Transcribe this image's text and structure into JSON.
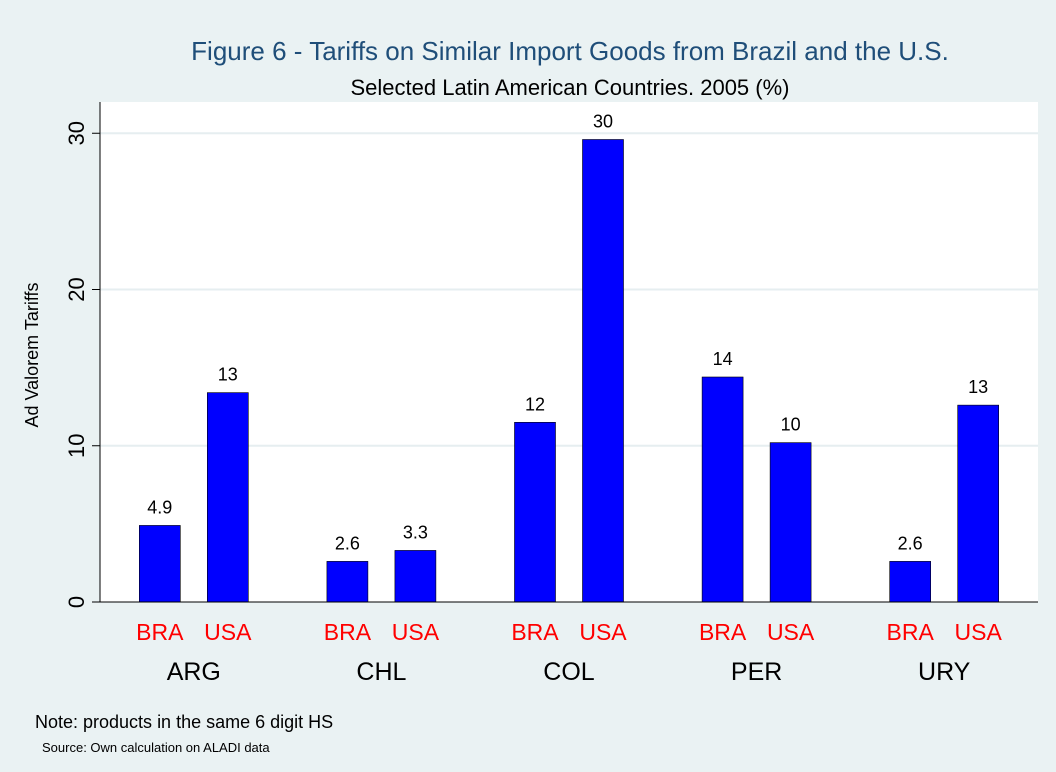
{
  "chart_data": {
    "type": "bar",
    "title": "Figure 6 - Tariffs on Similar Import Goods from Brazil and the U.S.",
    "subtitle": "Selected Latin American Countries. 2005 (%)",
    "ylabel": "Ad Valorem Tariffs",
    "ylim": [
      0,
      32
    ],
    "yticks": [
      0,
      10,
      20,
      30
    ],
    "grid": true,
    "categories": [
      "ARG",
      "CHL",
      "COL",
      "PER",
      "URY"
    ],
    "sub_categories": [
      "BRA",
      "USA"
    ],
    "series": [
      {
        "name": "BRA",
        "values": [
          4.9,
          2.6,
          11.5,
          14.4,
          2.6
        ],
        "labels": [
          "4.9",
          "2.6",
          "12",
          "14",
          "2.6"
        ]
      },
      {
        "name": "USA",
        "values": [
          13.4,
          3.3,
          29.6,
          10.2,
          12.6
        ],
        "labels": [
          "13",
          "3.3",
          "30",
          "10",
          "13"
        ]
      }
    ],
    "colors": {
      "bar": "#0000ff",
      "sub_label": "#ff0000",
      "title": "#1f4e79",
      "background": "#eaf2f3",
      "plot": "#ffffff"
    }
  },
  "notes": {
    "note": "Note: products in the same 6 digit HS",
    "source": "Source: Own calculation on ALADI data"
  }
}
